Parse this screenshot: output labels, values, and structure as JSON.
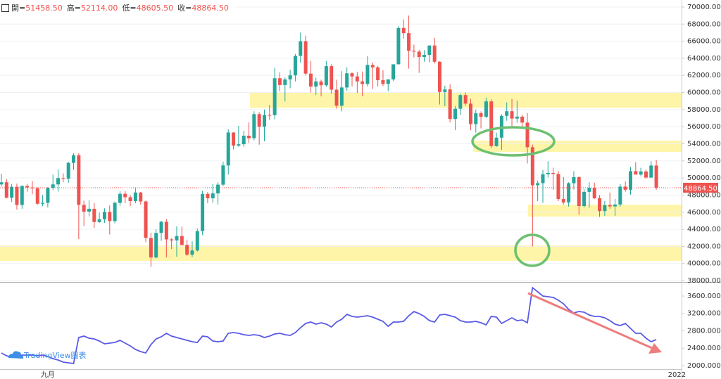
{
  "chart_data": [
    {
      "type": "candlestick",
      "legend": [
        {
          "label": "開=",
          "value": 51458.5,
          "value_label": "51458.50"
        },
        {
          "label": "高=",
          "value": 52114,
          "value_label": "52114.00"
        },
        {
          "label": "低=",
          "value": 48605.5,
          "value_label": "48605.50"
        },
        {
          "label": "收=",
          "value": 48864.5,
          "value_label": "48864.50"
        }
      ],
      "up_color": "#26a69a",
      "down_color": "#ef5350",
      "zone_color": "#fff5a8",
      "ohlc": [
        [
          49250,
          50500,
          49000,
          49500
        ],
        [
          49500,
          49850,
          47600,
          47700
        ],
        [
          47700,
          49300,
          47200,
          48970
        ],
        [
          48970,
          49350,
          46300,
          46850
        ],
        [
          46850,
          49150,
          46400,
          49070
        ],
        [
          49070,
          49300,
          48400,
          48900
        ],
        [
          48900,
          49650,
          48100,
          48800
        ],
        [
          48800,
          48900,
          46900,
          46990
        ],
        [
          46990,
          48000,
          46700,
          47100
        ],
        [
          47100,
          48950,
          46550,
          48850
        ],
        [
          48850,
          50400,
          48600,
          49250
        ],
        [
          49250,
          51000,
          48400,
          49990
        ],
        [
          49990,
          50550,
          49500,
          49920
        ],
        [
          49920,
          51900,
          49450,
          51770
        ],
        [
          51770,
          52900,
          50950,
          52660
        ],
        [
          52660,
          52900,
          42850,
          46860
        ],
        [
          46860,
          47350,
          44400,
          46070
        ],
        [
          46070,
          47400,
          45500,
          46400
        ],
        [
          46400,
          47050,
          44150,
          44850
        ],
        [
          44850,
          45950,
          44750,
          45170
        ],
        [
          45170,
          46450,
          44750,
          46030
        ],
        [
          46030,
          46800,
          43400,
          44960
        ],
        [
          44960,
          47250,
          44700,
          47090
        ],
        [
          47090,
          48450,
          46750,
          48150
        ],
        [
          48150,
          48500,
          47050,
          47750
        ],
        [
          47750,
          48000,
          46700,
          47300
        ],
        [
          47300,
          48800,
          47050,
          48300
        ],
        [
          48300,
          48370,
          46900,
          47260
        ],
        [
          47260,
          47350,
          42500,
          42990
        ],
        [
          42990,
          43600,
          39600,
          40700
        ],
        [
          40700,
          44000,
          40600,
          43580
        ],
        [
          43580,
          45000,
          42650,
          44880
        ],
        [
          44880,
          45200,
          40700,
          42820
        ],
        [
          42820,
          42950,
          41700,
          42700
        ],
        [
          42700,
          44350,
          40800,
          43210
        ],
        [
          43210,
          44300,
          42100,
          42170
        ],
        [
          42170,
          42800,
          40900,
          41030
        ],
        [
          41030,
          42600,
          40750,
          41520
        ],
        [
          41520,
          44100,
          41400,
          43790
        ],
        [
          43790,
          48500,
          43300,
          48140
        ],
        [
          48140,
          48350,
          47050,
          47630
        ],
        [
          47630,
          49300,
          47100,
          48200
        ],
        [
          48200,
          49500,
          46900,
          49220
        ],
        [
          49220,
          51900,
          49050,
          51470
        ],
        [
          51470,
          55700,
          50400,
          55320
        ],
        [
          55320,
          55350,
          53350,
          53790
        ],
        [
          53790,
          56100,
          53650,
          53950
        ],
        [
          53950,
          55500,
          53650,
          54950
        ],
        [
          54950,
          56500,
          54100,
          54660
        ],
        [
          54660,
          57800,
          54400,
          57470
        ],
        [
          57470,
          57700,
          53900,
          56000
        ],
        [
          56000,
          58000,
          54300,
          57370
        ],
        [
          57370,
          58550,
          56800,
          57350
        ],
        [
          57350,
          62900,
          56850,
          61670
        ],
        [
          61670,
          62350,
          60150,
          60880
        ],
        [
          60880,
          61750,
          58950,
          61530
        ],
        [
          61530,
          62650,
          60500,
          62010
        ],
        [
          62010,
          64500,
          61300,
          64280
        ],
        [
          64280,
          67000,
          63500,
          66000
        ],
        [
          66000,
          66650,
          62000,
          62210
        ],
        [
          62210,
          63700,
          60000,
          60690
        ],
        [
          60690,
          61750,
          59700,
          61290
        ],
        [
          61290,
          61500,
          59550,
          60850
        ],
        [
          60850,
          63700,
          60650,
          63080
        ],
        [
          63080,
          63300,
          59850,
          60330
        ],
        [
          60330,
          61500,
          58100,
          58450
        ],
        [
          58450,
          62500,
          57800,
          60590
        ],
        [
          60590,
          62950,
          60200,
          62250
        ],
        [
          62250,
          62350,
          60700,
          61880
        ],
        [
          61880,
          62400,
          59950,
          61300
        ],
        [
          61300,
          62450,
          59550,
          61000
        ],
        [
          61000,
          64250,
          60700,
          63230
        ],
        [
          63230,
          63500,
          60400,
          62940
        ],
        [
          62940,
          63100,
          60700,
          61440
        ],
        [
          61440,
          62600,
          60750,
          61010
        ],
        [
          61010,
          61550,
          60150,
          61530
        ],
        [
          61530,
          63300,
          61350,
          63300
        ],
        [
          63300,
          67750,
          63300,
          67550
        ],
        [
          67550,
          68550,
          66300,
          66940
        ],
        [
          66940,
          69000,
          62800,
          64880
        ],
        [
          64880,
          65600,
          64100,
          64780
        ],
        [
          64780,
          65000,
          62300,
          64150
        ],
        [
          64150,
          64950,
          63600,
          64400
        ],
        [
          64400,
          65500,
          63550,
          65500
        ],
        [
          65500,
          66400,
          63400,
          63600
        ],
        [
          63600,
          63650,
          58600,
          60060
        ],
        [
          60060,
          60800,
          58400,
          60360
        ],
        [
          60360,
          60950,
          56500,
          56900
        ],
        [
          56900,
          58400,
          55600,
          58100
        ],
        [
          58100,
          59850,
          57350,
          59700
        ],
        [
          59700,
          60000,
          58450,
          58700
        ],
        [
          58700,
          59250,
          55600,
          56300
        ],
        [
          56300,
          58000,
          55300,
          57570
        ],
        [
          57570,
          57800,
          55800,
          57160
        ],
        [
          57160,
          59400,
          57000,
          58960
        ],
        [
          58960,
          59200,
          53500,
          53730
        ],
        [
          53730,
          55300,
          53650,
          54720
        ],
        [
          54720,
          57450,
          53300,
          57270
        ],
        [
          57270,
          58850,
          56700,
          57810
        ],
        [
          57810,
          59250,
          55900,
          56950
        ],
        [
          56950,
          59050,
          56450,
          57180
        ],
        [
          57180,
          57400,
          55850,
          56480
        ],
        [
          56480,
          57600,
          51700,
          53600
        ],
        [
          53600,
          53900,
          42000,
          49150
        ],
        [
          49150,
          49700,
          47300,
          49400
        ],
        [
          49400,
          50950,
          47100,
          50440
        ],
        [
          50440,
          51950,
          50050,
          50590
        ],
        [
          50590,
          51200,
          48600,
          50470
        ],
        [
          50470,
          50800,
          47300,
          47540
        ],
        [
          47540,
          50100,
          46900,
          47140
        ],
        [
          47140,
          49500,
          46650,
          49390
        ],
        [
          49390,
          50800,
          48650,
          50100
        ],
        [
          50100,
          50200,
          45700,
          46720
        ],
        [
          46720,
          48700,
          46550,
          48380
        ],
        [
          48380,
          49500,
          46550,
          48860
        ],
        [
          48860,
          49450,
          47550,
          47630
        ],
        [
          47630,
          48000,
          45450,
          46130
        ],
        [
          46130,
          47300,
          45550,
          46830
        ],
        [
          46830,
          48300,
          46400,
          46680
        ],
        [
          46680,
          47550,
          45550,
          46900
        ],
        [
          46900,
          49300,
          46650,
          48990
        ],
        [
          48990,
          49600,
          48400,
          48630
        ],
        [
          48630,
          51300,
          48050,
          50800
        ],
        [
          50800,
          51850,
          50450,
          50400
        ],
        [
          50400,
          51200,
          50200,
          50770
        ],
        [
          50770,
          51000,
          49900,
          50050
        ],
        [
          50050,
          51950,
          50000,
          51458.5
        ],
        [
          51458.5,
          52114,
          48605.5,
          48864.5
        ]
      ],
      "xlim": [
        -0.27,
        131.9
      ],
      "xticks": [
        {
          "value": 9,
          "label": "九月"
        },
        {
          "value": 131,
          "label": "2022"
        }
      ],
      "ylim": [
        37840,
        70820
      ],
      "yticks": [
        {
          "value": 38000,
          "label": "38000.00"
        },
        {
          "value": 40000,
          "label": "40000.00"
        },
        {
          "value": 42000,
          "label": "42000.00"
        },
        {
          "value": 44000,
          "label": "44000.00"
        },
        {
          "value": 46000,
          "label": "46000.00"
        },
        {
          "value": 48000,
          "label": "48000.00"
        },
        {
          "value": 50000,
          "label": "50000.00"
        },
        {
          "value": 52000,
          "label": "52000.00"
        },
        {
          "value": 54000,
          "label": "54000.00"
        },
        {
          "value": 56000,
          "label": "56000.00"
        },
        {
          "value": 58000,
          "label": "58000.00"
        },
        {
          "value": 60000,
          "label": "60000.00"
        },
        {
          "value": 62000,
          "label": "62000.00"
        },
        {
          "value": 64000,
          "label": "64000.00"
        },
        {
          "value": 66000,
          "label": "66000.00"
        },
        {
          "value": 68000,
          "label": "68000.00"
        },
        {
          "value": 70000,
          "label": "70000.00"
        }
      ],
      "grid": true,
      "last_price": {
        "value": 48864.5,
        "label": "48864.50"
      },
      "zones": [
        {
          "from": 58200,
          "to": 60000,
          "start": 48.2
        },
        {
          "from": 53050,
          "to": 54370,
          "start": 91.5
        },
        {
          "from": 45490,
          "to": 46880,
          "start": 102.1
        },
        {
          "from": 40300,
          "to": 42110,
          "start": -0.27
        }
      ]
    },
    {
      "type": "line",
      "color": "#5a5ae6",
      "values": [
        2291,
        2226,
        2194,
        2226,
        2243,
        2243,
        2243,
        2226,
        2243,
        2210,
        2162,
        2129,
        2081,
        2065,
        2049,
        2647,
        2679,
        2630,
        2614,
        2566,
        2501,
        2517,
        2533,
        2582,
        2517,
        2453,
        2372,
        2323,
        2291,
        2485,
        2614,
        2663,
        2744,
        2679,
        2647,
        2614,
        2582,
        2550,
        2533,
        2679,
        2663,
        2566,
        2550,
        2566,
        2744,
        2760,
        2744,
        2711,
        2695,
        2711,
        2695,
        2647,
        2679,
        2727,
        2744,
        2711,
        2695,
        2760,
        2873,
        2970,
        3002,
        2954,
        2986,
        2954,
        2889,
        3002,
        3067,
        3180,
        3131,
        3115,
        3131,
        3148,
        3115,
        3067,
        3018,
        2905,
        3002,
        3002,
        3018,
        3148,
        3244,
        3196,
        3131,
        3034,
        3002,
        3164,
        3180,
        3148,
        3115,
        3034,
        3002,
        3002,
        3018,
        2986,
        2937,
        3131,
        3115,
        2970,
        3034,
        3099,
        3034,
        3051,
        2986,
        3790,
        3697,
        3600,
        3584,
        3568,
        3503,
        3422,
        3293,
        3212,
        3244,
        3228,
        3164,
        3131,
        3131,
        3099,
        3034,
        2954,
        2921,
        2970,
        2857,
        2744,
        2744,
        2630,
        2550,
        2600
      ],
      "ylim": [
        1919,
        3907
      ],
      "yticks": [
        {
          "value": 2000,
          "label": "2000.0000"
        },
        {
          "value": 2400,
          "label": "2400.0000"
        },
        {
          "value": 2800,
          "label": "2800.0000"
        },
        {
          "value": 3200,
          "label": "3200.0000"
        },
        {
          "value": 3600,
          "label": "3600.0000"
        }
      ],
      "watermark": "TradingView圖表"
    }
  ]
}
